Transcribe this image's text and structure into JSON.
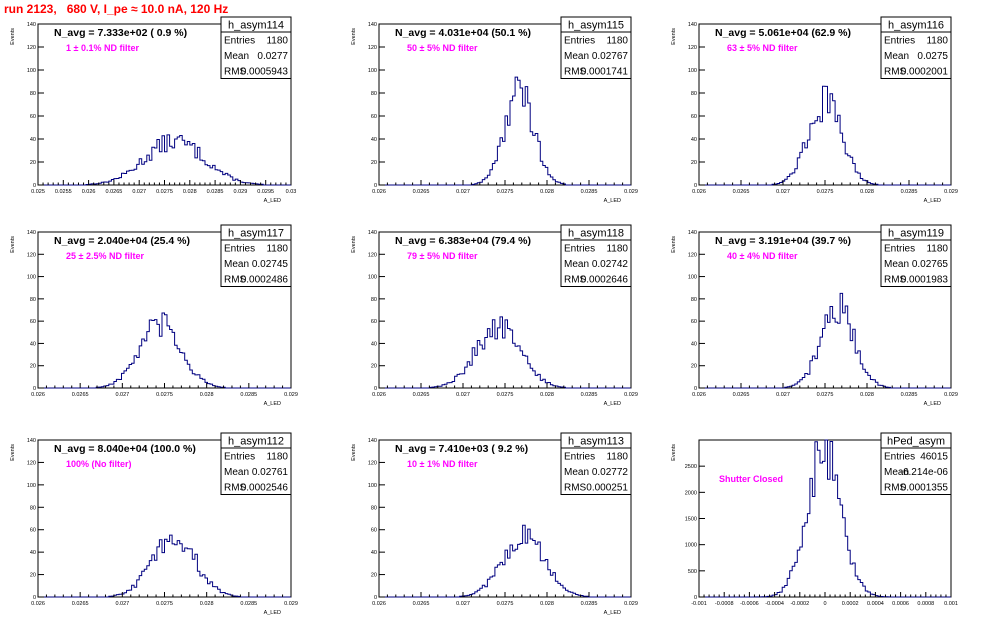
{
  "page": {
    "title": "run 2123,   680 V, I_pe ≈ 10.0 nA, 120 Hz"
  },
  "colors": {
    "title": "#ff0000",
    "hist": "#000080",
    "annotation": "#ff00ff",
    "frame": "#000000"
  },
  "chart_data": [
    {
      "type": "histogram",
      "name": "h_asym114",
      "ylabel": "Events",
      "xlabel": "A_LED",
      "nlabel": "N_avg = 7.333e+02 ( 0.9 %)",
      "annotation": "1 ± 0.1% ND filter",
      "xlim": [
        0.025,
        0.03
      ],
      "ylim": [
        0,
        140
      ],
      "xticks": [
        "0.025",
        "0.0255",
        "0.026",
        "0.0265",
        "0.027",
        "0.0275",
        "0.028",
        "0.0285",
        "0.029",
        "0.0295",
        "0.03"
      ],
      "yticks": [
        "0",
        "20",
        "40",
        "60",
        "80",
        "100",
        "120",
        "140"
      ],
      "stats": [
        {
          "label": "Entries",
          "value": "1180"
        },
        {
          "label": "Mean",
          "value": "0.0277"
        },
        {
          "label": "RMS",
          "value": "0.0005943"
        }
      ],
      "mean": 0.0277,
      "sigma": 0.00059,
      "peak": 38,
      "nbins": 100
    },
    {
      "type": "histogram",
      "name": "h_asym115",
      "ylabel": "Events",
      "xlabel": "A_LED",
      "nlabel": "N_avg = 4.031e+04 (50.1 %)",
      "annotation": "50 ± 5% ND filter",
      "xlim": [
        0.026,
        0.029
      ],
      "ylim": [
        0,
        140
      ],
      "xticks": [
        "0.026",
        "0.0265",
        "0.027",
        "0.0275",
        "0.028",
        "0.0285",
        "0.029"
      ],
      "yticks": [
        "0",
        "20",
        "40",
        "60",
        "80",
        "100",
        "120",
        "140"
      ],
      "stats": [
        {
          "label": "Entries",
          "value": "1180"
        },
        {
          "label": "Mean",
          "value": "0.02767"
        },
        {
          "label": "RMS",
          "value": "0.0001741"
        }
      ],
      "mean": 0.02767,
      "sigma": 0.000174,
      "peak": 82,
      "nbins": 100
    },
    {
      "type": "histogram",
      "name": "h_asym116",
      "ylabel": "Events",
      "xlabel": "A_LED",
      "nlabel": "N_avg = 5.061e+04 (62.9 %)",
      "annotation": "63 ± 5% ND filter",
      "xlim": [
        0.026,
        0.029
      ],
      "ylim": [
        0,
        140
      ],
      "xticks": [
        "0.026",
        "0.0265",
        "0.027",
        "0.0275",
        "0.028",
        "0.0285",
        "0.029"
      ],
      "yticks": [
        "0",
        "20",
        "40",
        "60",
        "80",
        "100",
        "120",
        "140"
      ],
      "stats": [
        {
          "label": "Entries",
          "value": "1180"
        },
        {
          "label": "Mean",
          "value": "0.0275"
        },
        {
          "label": "RMS",
          "value": "0.0002001"
        }
      ],
      "mean": 0.0275,
      "sigma": 0.0002,
      "peak": 72,
      "nbins": 100
    },
    {
      "type": "histogram",
      "name": "h_asym117",
      "ylabel": "Events",
      "xlabel": "A_LED",
      "nlabel": "N_avg = 2.040e+04 (25.4 %)",
      "annotation": "25 ± 2.5% ND filter",
      "xlim": [
        0.026,
        0.029
      ],
      "ylim": [
        0,
        140
      ],
      "xticks": [
        "0.026",
        "0.0265",
        "0.027",
        "0.0275",
        "0.028",
        "0.0285",
        "0.029"
      ],
      "yticks": [
        "0",
        "20",
        "40",
        "60",
        "80",
        "100",
        "120",
        "140"
      ],
      "stats": [
        {
          "label": "Entries",
          "value": "1180"
        },
        {
          "label": "Mean",
          "value": "0.02745"
        },
        {
          "label": "RMS",
          "value": "0.0002486"
        }
      ],
      "mean": 0.02745,
      "sigma": 0.000249,
      "peak": 56,
      "nbins": 100
    },
    {
      "type": "histogram",
      "name": "h_asym118",
      "ylabel": "Events",
      "xlabel": "A_LED",
      "nlabel": "N_avg = 6.383e+04 (79.4 %)",
      "annotation": "79 ± 5% ND filter",
      "xlim": [
        0.026,
        0.029
      ],
      "ylim": [
        0,
        140
      ],
      "xticks": [
        "0.026",
        "0.0265",
        "0.027",
        "0.0275",
        "0.028",
        "0.0285",
        "0.029"
      ],
      "yticks": [
        "0",
        "20",
        "40",
        "60",
        "80",
        "100",
        "120",
        "140"
      ],
      "stats": [
        {
          "label": "Entries",
          "value": "1180"
        },
        {
          "label": "Mean",
          "value": "0.02742"
        },
        {
          "label": "RMS",
          "value": "0.0002646"
        }
      ],
      "mean": 0.02742,
      "sigma": 0.000265,
      "peak": 55,
      "nbins": 100
    },
    {
      "type": "histogram",
      "name": "h_asym119",
      "ylabel": "Events",
      "xlabel": "A_LED",
      "nlabel": "N_avg = 3.191e+04 (39.7 %)",
      "annotation": "40 ± 4% ND filter",
      "xlim": [
        0.026,
        0.029
      ],
      "ylim": [
        0,
        140
      ],
      "xticks": [
        "0.026",
        "0.0265",
        "0.027",
        "0.0275",
        "0.028",
        "0.0285",
        "0.029"
      ],
      "yticks": [
        "0",
        "20",
        "40",
        "60",
        "80",
        "100",
        "120",
        "140"
      ],
      "stats": [
        {
          "label": "Entries",
          "value": "1180"
        },
        {
          "label": "Mean",
          "value": "0.02765"
        },
        {
          "label": "RMS",
          "value": "0.0001983"
        }
      ],
      "mean": 0.02765,
      "sigma": 0.000198,
      "peak": 72,
      "nbins": 100
    },
    {
      "type": "histogram",
      "name": "h_asym112",
      "ylabel": "Events",
      "xlabel": "A_LED",
      "nlabel": "N_avg = 8.040e+04 (100.0 %)",
      "annotation": "100% (No filter)",
      "xlim": [
        0.026,
        0.029
      ],
      "ylim": [
        0,
        140
      ],
      "xticks": [
        "0.026",
        "0.0265",
        "0.027",
        "0.0275",
        "0.028",
        "0.0285",
        "0.029"
      ],
      "yticks": [
        "0",
        "20",
        "40",
        "60",
        "80",
        "100",
        "120",
        "140"
      ],
      "stats": [
        {
          "label": "Entries",
          "value": "1180"
        },
        {
          "label": "Mean",
          "value": "0.02761"
        },
        {
          "label": "RMS",
          "value": "0.0002546"
        }
      ],
      "mean": 0.02761,
      "sigma": 0.000255,
      "peak": 54,
      "nbins": 100
    },
    {
      "type": "histogram",
      "name": "h_asym113",
      "ylabel": "Events",
      "xlabel": "A_LED",
      "nlabel": "N_avg = 7.410e+03 ( 9.2 %)",
      "annotation": "10 ± 1% ND filter",
      "xlim": [
        0.026,
        0.029
      ],
      "ylim": [
        0,
        140
      ],
      "xticks": [
        "0.026",
        "0.0265",
        "0.027",
        "0.0275",
        "0.028",
        "0.0285",
        "0.029"
      ],
      "yticks": [
        "0",
        "20",
        "40",
        "60",
        "80",
        "100",
        "120",
        "140"
      ],
      "stats": [
        {
          "label": "Entries",
          "value": "1180"
        },
        {
          "label": "Mean",
          "value": "0.02772"
        },
        {
          "label": "RMS",
          "value": "0.000251"
        }
      ],
      "mean": 0.02772,
      "sigma": 0.000251,
      "peak": 54,
      "nbins": 100
    },
    {
      "type": "histogram",
      "name": "hPed_asym",
      "ylabel": "Events",
      "xlabel": "",
      "nlabel": "",
      "annotation": "Shutter Closed",
      "xlim": [
        -0.001,
        0.001
      ],
      "ylim": [
        0,
        3000
      ],
      "xticks": [
        "-0.001",
        "-0.0008",
        "-0.0006",
        "-0.0004",
        "-0.0002",
        "0",
        "0.0002",
        "0.0004",
        "0.0006",
        "0.0008",
        "0.001"
      ],
      "yticks": [
        "0",
        "500",
        "1000",
        "1500",
        "2000",
        "2500"
      ],
      "stats": [
        {
          "label": "Entries",
          "value": "46015"
        },
        {
          "label": "Mean",
          "value": "-6.214e-06"
        },
        {
          "label": "RMS",
          "value": "0.0001355"
        }
      ],
      "mean": -6.214e-06,
      "sigma": 0.0001355,
      "peak": 2800,
      "nbins": 100
    }
  ]
}
